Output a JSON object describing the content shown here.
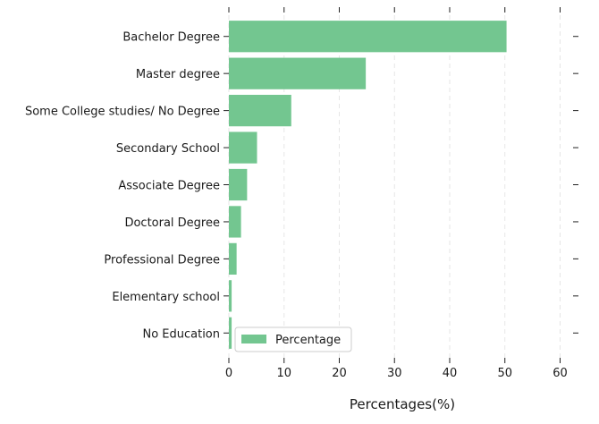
{
  "chart_data": {
    "type": "bar",
    "orientation": "horizontal",
    "categories": [
      "Bachelor Degree",
      "Master degree",
      "Some College studies/ No Degree",
      "Secondary School",
      "Associate Degree",
      "Doctoral Degree",
      "Professional Degree",
      "Elementary school",
      "No Education"
    ],
    "series": [
      {
        "name": "Percentage",
        "color": "#73c690",
        "values": [
          50.3,
          24.8,
          11.3,
          5.1,
          3.3,
          2.2,
          1.4,
          0.5,
          0.5
        ]
      }
    ],
    "xlabel": "Percentages(%)",
    "ylabel": "",
    "xlim": [
      0,
      63
    ],
    "xticks": [
      0,
      10,
      20,
      30,
      40,
      50,
      60
    ],
    "grid": "vertical-dashed",
    "legend_position": "lower-left"
  }
}
